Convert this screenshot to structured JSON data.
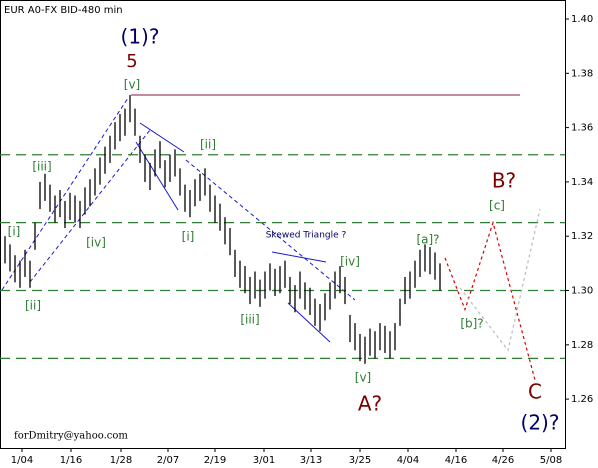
{
  "chart_data": {
    "type": "ohlc",
    "title": "EUR A0-FX BID-480 min",
    "x": [
      1,
      2,
      3,
      4,
      5,
      6,
      7,
      8,
      9,
      10,
      11,
      12,
      13,
      14,
      15,
      16,
      17,
      18,
      19,
      20,
      21,
      22,
      23,
      24,
      25,
      26,
      27,
      28,
      29,
      30,
      31,
      32,
      33,
      34,
      35,
      36,
      37,
      38,
      39,
      40,
      41,
      42,
      43,
      44,
      45,
      46,
      47,
      48,
      49,
      50,
      51,
      52,
      53,
      54,
      55,
      56,
      57,
      58,
      59,
      60,
      61,
      62,
      63,
      64,
      65,
      66,
      67,
      68,
      69,
      70,
      71,
      72,
      73,
      74,
      75,
      76,
      77,
      78,
      79,
      80,
      81,
      82,
      83,
      84,
      85,
      86,
      87,
      88
    ],
    "high": [
      1.32,
      1.317,
      1.313,
      1.311,
      1.315,
      1.311,
      1.325,
      1.34,
      1.343,
      1.339,
      1.335,
      1.337,
      1.333,
      1.336,
      1.335,
      1.333,
      1.338,
      1.341,
      1.345,
      1.349,
      1.353,
      1.357,
      1.362,
      1.365,
      1.367,
      1.372,
      1.367,
      1.357,
      1.35,
      1.347,
      1.352,
      1.355,
      1.348,
      1.35,
      1.352,
      1.345,
      1.339,
      1.337,
      1.341,
      1.343,
      1.345,
      1.339,
      1.335,
      1.332,
      1.327,
      1.323,
      1.315,
      1.311,
      1.309,
      1.305,
      1.307,
      1.304,
      1.307,
      1.31,
      1.308,
      1.309,
      1.311,
      1.305,
      1.302,
      1.307,
      1.303,
      1.301,
      1.297,
      1.295,
      1.299,
      1.303,
      1.307,
      1.309,
      1.305,
      1.291,
      1.288,
      1.284,
      1.283,
      1.286,
      1.285,
      1.288,
      1.287,
      1.285,
      1.288,
      1.297,
      1.305,
      1.307,
      1.311,
      1.315,
      1.317,
      1.316,
      1.314,
      1.31
    ],
    "low": [
      1.31,
      1.307,
      1.303,
      1.301,
      1.305,
      1.301,
      1.315,
      1.33,
      1.333,
      1.329,
      1.325,
      1.327,
      1.323,
      1.326,
      1.325,
      1.323,
      1.328,
      1.331,
      1.335,
      1.339,
      1.343,
      1.347,
      1.352,
      1.355,
      1.357,
      1.362,
      1.357,
      1.347,
      1.34,
      1.337,
      1.342,
      1.345,
      1.338,
      1.34,
      1.342,
      1.335,
      1.329,
      1.327,
      1.331,
      1.333,
      1.335,
      1.329,
      1.325,
      1.322,
      1.317,
      1.313,
      1.305,
      1.301,
      1.299,
      1.295,
      1.297,
      1.294,
      1.297,
      1.3,
      1.298,
      1.299,
      1.301,
      1.295,
      1.292,
      1.297,
      1.293,
      1.291,
      1.287,
      1.285,
      1.289,
      1.293,
      1.297,
      1.299,
      1.295,
      1.281,
      1.278,
      1.274,
      1.273,
      1.276,
      1.275,
      1.278,
      1.277,
      1.275,
      1.278,
      1.287,
      1.295,
      1.297,
      1.301,
      1.305,
      1.307,
      1.306,
      1.304,
      1.3
    ],
    "color": "#000000",
    "xlim": [
      0,
      113
    ],
    "xticks": [
      {
        "value": 4.4,
        "label": "1/04"
      },
      {
        "value": 14.2,
        "label": "1/16"
      },
      {
        "value": 24.2,
        "label": "1/28"
      },
      {
        "value": 33.6,
        "label": "2/07"
      },
      {
        "value": 43,
        "label": "2/19"
      },
      {
        "value": 52.8,
        "label": "3/01"
      },
      {
        "value": 62.2,
        "label": "3/13"
      },
      {
        "value": 72,
        "label": "3/25"
      },
      {
        "value": 81.6,
        "label": "4/04"
      },
      {
        "value": 91.2,
        "label": "4/16"
      },
      {
        "value": 100.6,
        "label": "4/26"
      },
      {
        "value": 110.2,
        "label": "5/08"
      }
    ],
    "ylim": [
      1.242,
      1.407
    ],
    "yticks": [
      1.26,
      1.28,
      {
        "value": 1.3,
        "label": "1.30"
      },
      1.32,
      1.34,
      1.36,
      1.38,
      {
        "value": 1.4,
        "label": "1.40"
      }
    ],
    "levels": [
      1.35,
      1.325,
      1.3,
      1.275
    ],
    "level_color": "#2e7d32",
    "resistance": {
      "y": 1.372,
      "x": [
        26.2,
        104
      ],
      "color": "#8b1a3a"
    },
    "forecast": [
      {
        "color": "#dd0000",
        "x": [
          89,
          93,
          98.6,
          107
        ],
        "y": [
          1.312,
          1.293,
          1.325,
          1.267
        ]
      },
      {
        "color": "#bbbbbb",
        "x": [
          92,
          101.6,
          108
        ],
        "y": [
          1.301,
          1.278,
          1.33
        ]
      }
    ],
    "annotations": [
      "(1)?",
      "5",
      "[v]",
      "[iii]",
      "[i]",
      "[ii]",
      "[iv]",
      "[ii]",
      "[i]",
      "Skewed Triangle ?",
      "[iv]",
      "[iii]",
      "[v]",
      "A?",
      "[a]?",
      "[b]?",
      "[c]",
      "B?",
      "C",
      "(2)?"
    ],
    "credit": "forDmitry@yahoo.com"
  }
}
